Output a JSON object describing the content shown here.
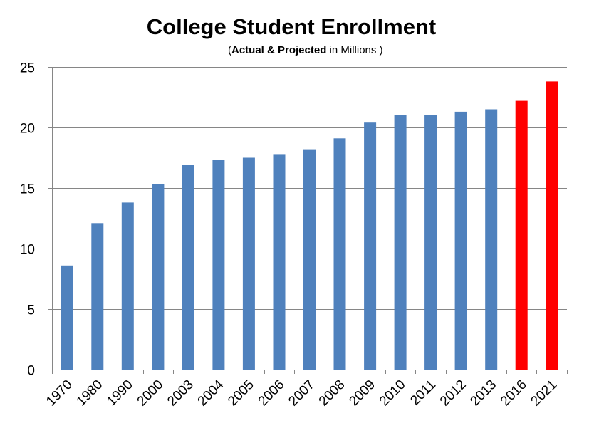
{
  "chart_data": {
    "type": "bar",
    "title": "College Student Enrollment",
    "subtitle_bold": "Actual & Projected",
    "subtitle_rest": "in Millions",
    "categories": [
      "1970",
      "1980",
      "1990",
      "2000",
      "2003",
      "2004",
      "2005",
      "2006",
      "2007",
      "2008",
      "2009",
      "2010",
      "2011",
      "2012",
      "2013",
      "2016",
      "2021"
    ],
    "values": [
      8.6,
      12.1,
      13.8,
      15.3,
      16.9,
      17.3,
      17.5,
      17.8,
      18.2,
      19.1,
      20.4,
      21.0,
      21.0,
      21.3,
      21.5,
      22.2,
      23.8
    ],
    "bar_colors": [
      "#4f81bd",
      "#4f81bd",
      "#4f81bd",
      "#4f81bd",
      "#4f81bd",
      "#4f81bd",
      "#4f81bd",
      "#4f81bd",
      "#4f81bd",
      "#4f81bd",
      "#4f81bd",
      "#4f81bd",
      "#4f81bd",
      "#4f81bd",
      "#4f81bd",
      "#ff0000",
      "#ff0000"
    ],
    "ylim": [
      0,
      25
    ],
    "yticks": [
      0,
      5,
      10,
      15,
      20,
      25
    ],
    "grid": true,
    "legend": "none"
  }
}
